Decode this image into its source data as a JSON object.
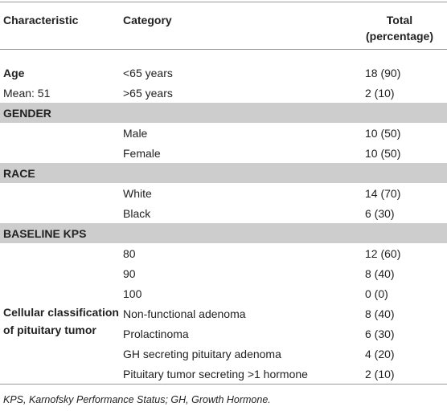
{
  "table": {
    "header": [
      "Characteristic",
      "Category",
      "Total (percentage)"
    ],
    "rows": [
      {
        "characteristic": "Age",
        "category": "<65 years",
        "total": "18 (90)"
      },
      {
        "characteristic": "Mean: 51",
        "category": ">65 years",
        "total": "2 (10)"
      },
      {
        "section": "GENDER"
      },
      {
        "category": "Male",
        "total": "10 (50)"
      },
      {
        "category": "Female",
        "total": "10 (50)"
      },
      {
        "section": "RACE"
      },
      {
        "category": "White",
        "total": "14 (70)"
      },
      {
        "category": "Black",
        "total": "6 (30)"
      },
      {
        "section": "BASELINE KPS"
      },
      {
        "category": "80",
        "total": "12 (60)"
      },
      {
        "category": "90",
        "total": "8 (40)"
      },
      {
        "category": "100",
        "total": "0 (0)"
      },
      {
        "characteristic": "Cellular classification of pituitary tumor",
        "category": "Non-functional adenoma",
        "total": "8 (40)"
      },
      {
        "category": "Prolactinoma",
        "total": "6 (30)"
      },
      {
        "category": "GH secreting pituitary adenoma",
        "total": "4 (20)"
      },
      {
        "category": "Pituitary tumor secreting >1 hormone",
        "total": "2 (10)"
      }
    ]
  },
  "footnote": "KPS, Karnofsky Performance Status; GH, Growth Hormone."
}
